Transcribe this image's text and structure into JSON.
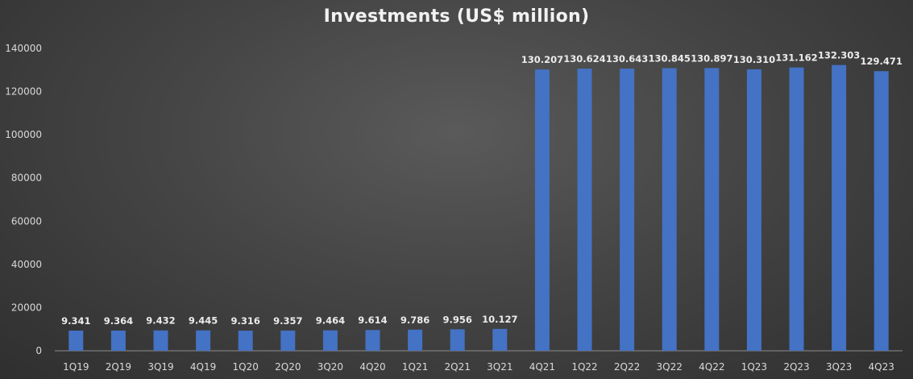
{
  "chart_data": {
    "type": "bar",
    "title": "Investments (US$ million)",
    "xlabel": "",
    "ylabel": "",
    "ylim": [
      0,
      140000
    ],
    "yticks": [
      0,
      20000,
      40000,
      60000,
      80000,
      100000,
      120000,
      140000
    ],
    "grid": false,
    "legend": "none",
    "bar_color": "#4472c4",
    "categories": [
      "1Q19",
      "2Q19",
      "3Q19",
      "4Q19",
      "1Q20",
      "2Q20",
      "3Q20",
      "4Q20",
      "1Q21",
      "2Q21",
      "3Q21",
      "4Q21",
      "1Q22",
      "2Q22",
      "3Q22",
      "4Q22",
      "1Q23",
      "2Q23",
      "3Q23",
      "4Q23"
    ],
    "values": [
      9341,
      9364,
      9432,
      9445,
      9316,
      9357,
      9464,
      9614,
      9786,
      9956,
      10127,
      130207,
      130624,
      130643,
      130845,
      130897,
      130310,
      131162,
      132303,
      129471
    ],
    "data_labels": [
      "9.341",
      "9.364",
      "9.432",
      "9.445",
      "9.316",
      "9.357",
      "9.464",
      "9.614",
      "9.786",
      "9.956",
      "10.127",
      "130.207",
      "130.624",
      "130.643",
      "130.845",
      "130.897",
      "130.310",
      "131.162",
      "132.303",
      "129.471"
    ]
  }
}
